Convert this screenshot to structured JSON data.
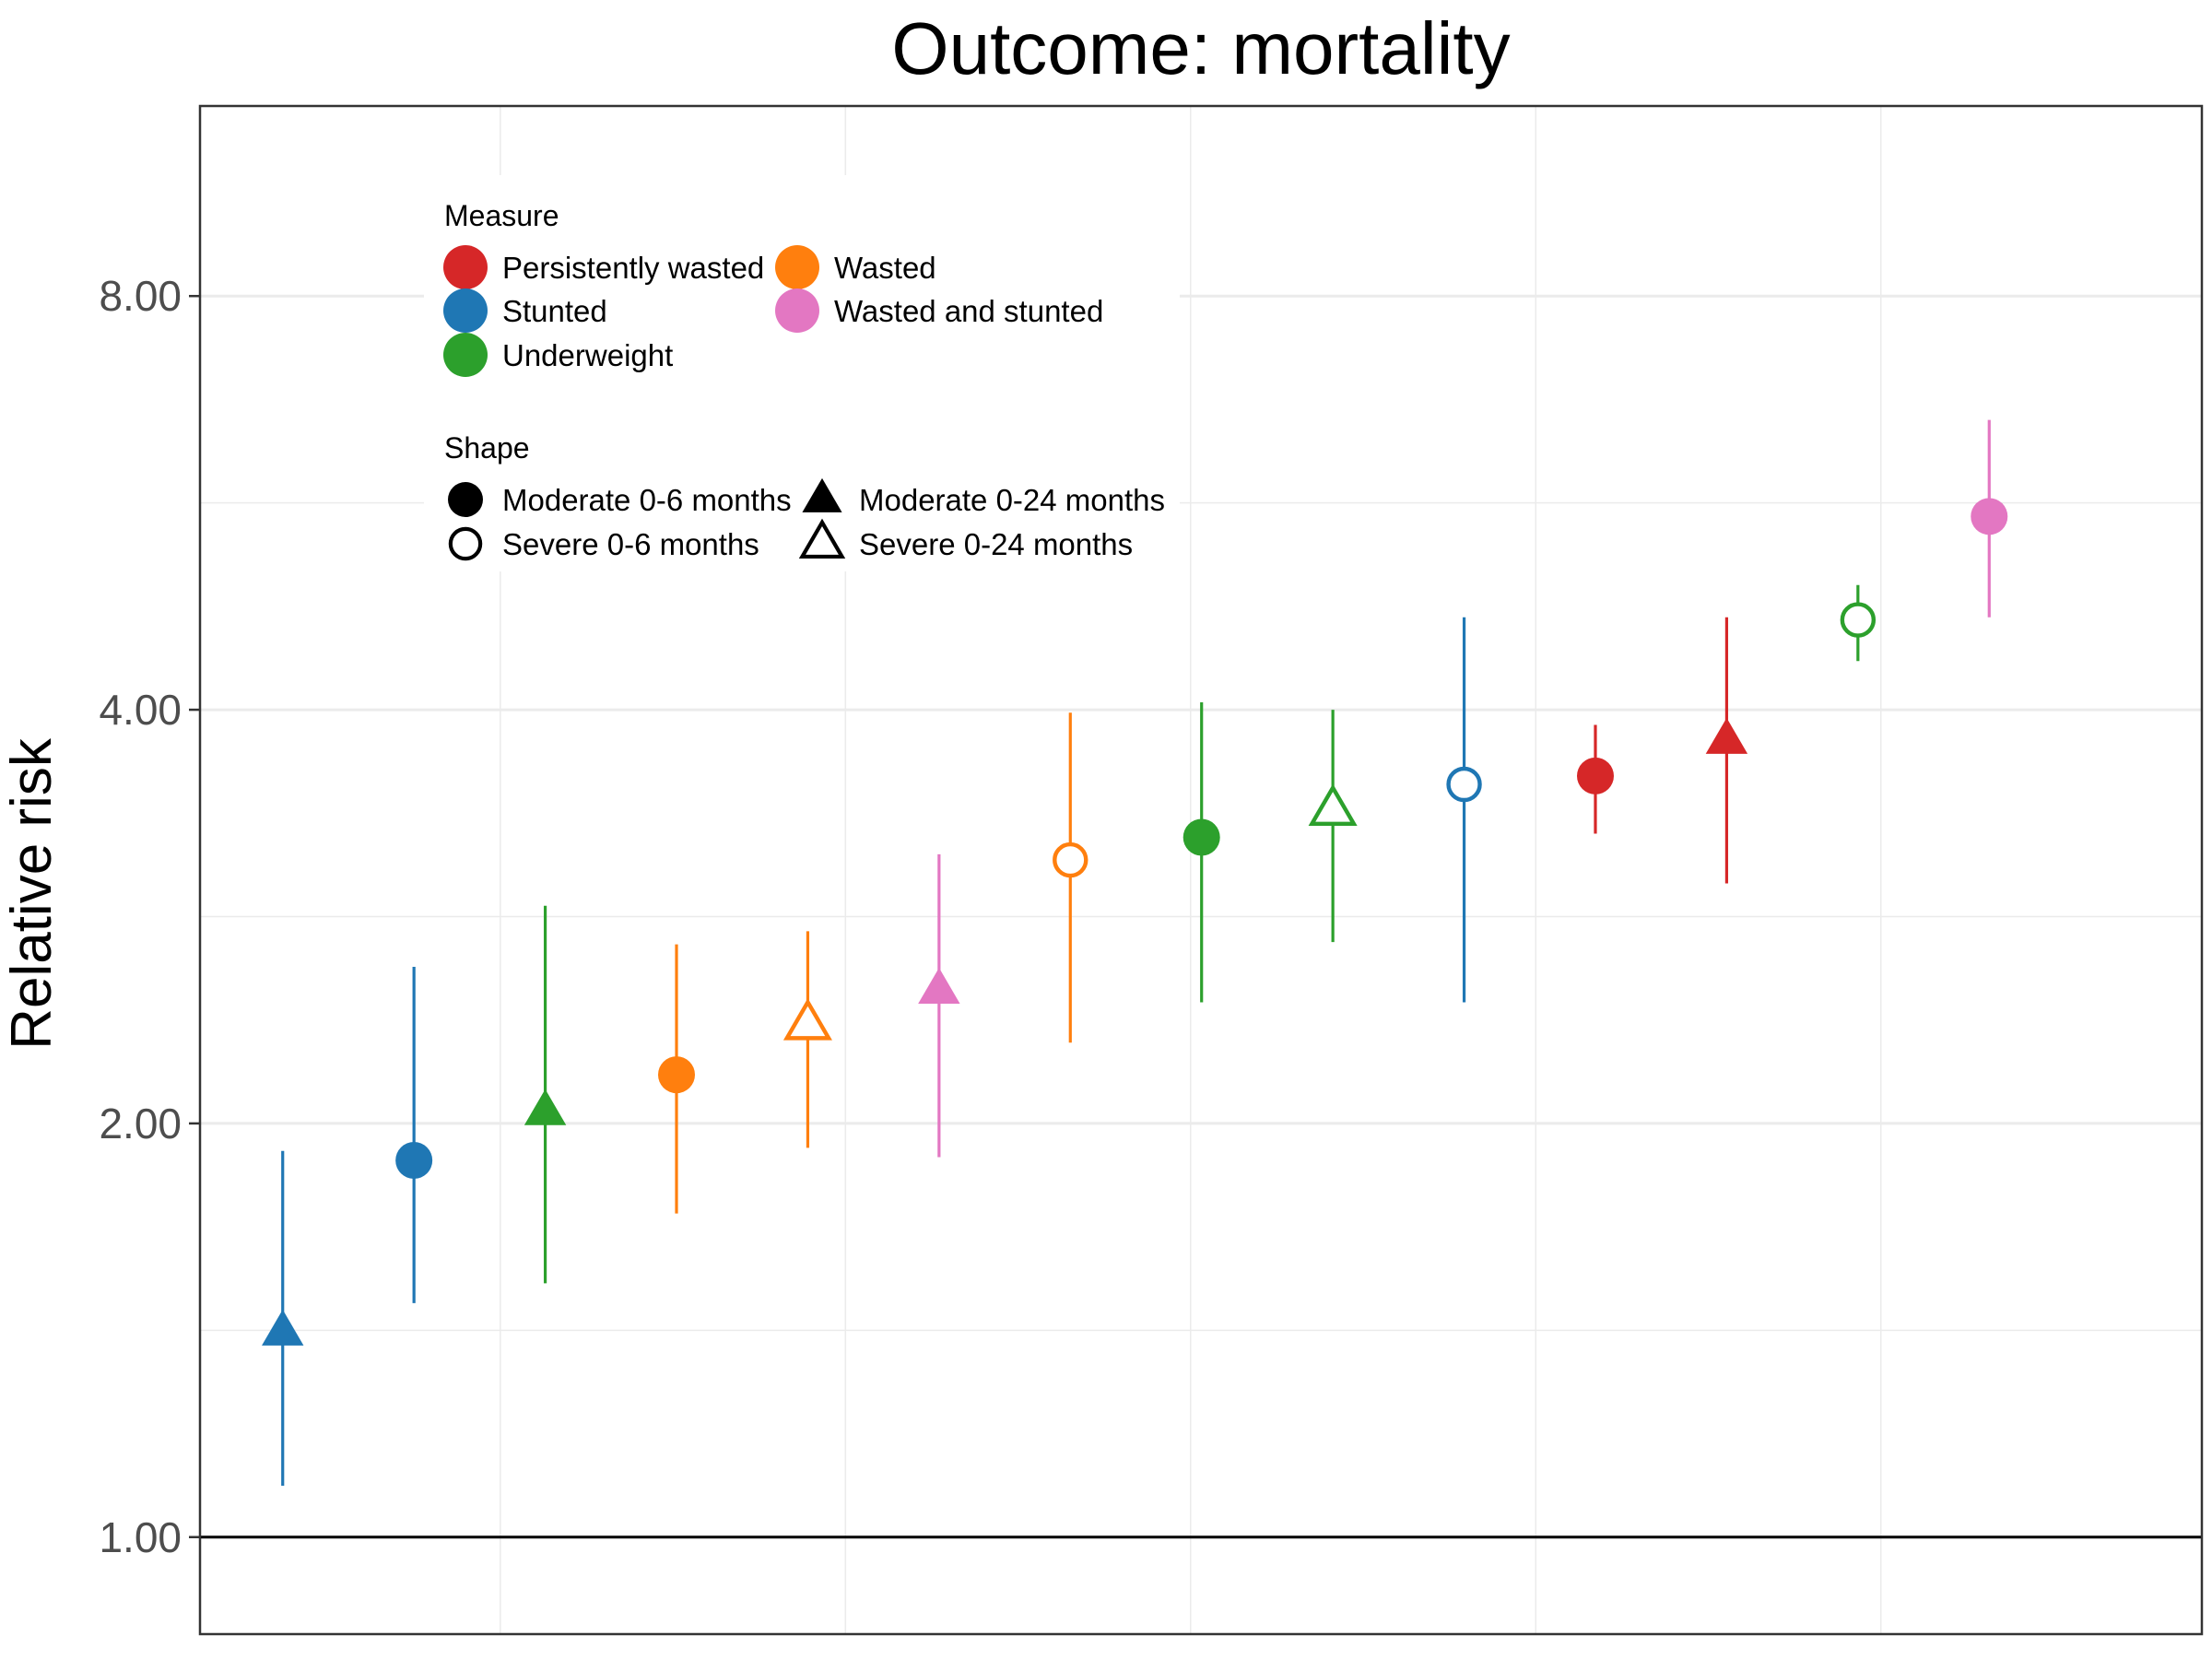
{
  "chart_data": {
    "type": "scatter",
    "title": "Outcome: mortality",
    "ylabel": "Relative risk",
    "xlabel": "",
    "y_scale": "log2",
    "ylim": [
      0.85,
      11.0
    ],
    "y_ticks": [
      1,
      2,
      4,
      8
    ],
    "y_tick_labels": [
      "1.00",
      "2.00",
      "4.00",
      "8.00"
    ],
    "reference_line": 1,
    "grid": true,
    "legend_position": "top-left",
    "legend": {
      "measure_title": "Measure",
      "measures": [
        {
          "name": "Persistently wasted",
          "color": "#D62728"
        },
        {
          "name": "Stunted",
          "color": "#1F77B4"
        },
        {
          "name": "Underweight",
          "color": "#2CA02C"
        },
        {
          "name": "Wasted",
          "color": "#FF7F0E"
        },
        {
          "name": "Wasted and stunted",
          "color": "#E377C2"
        }
      ],
      "shape_title": "Shape",
      "shapes": [
        {
          "name": "Moderate 0-6 months",
          "symbol": "circle-filled"
        },
        {
          "name": "Severe 0-6 months",
          "symbol": "circle-open"
        },
        {
          "name": "Moderate 0-24 months",
          "symbol": "triangle-filled"
        },
        {
          "name": "Severe 0-24 months",
          "symbol": "triangle-open"
        }
      ]
    },
    "points": [
      {
        "measure": "Stunted",
        "shape": "Moderate 0-24 months",
        "rr": 1.41,
        "lower": 1.09,
        "upper": 1.91
      },
      {
        "measure": "Stunted",
        "shape": "Moderate 0-6 months",
        "rr": 1.88,
        "lower": 1.48,
        "upper": 2.6
      },
      {
        "measure": "Underweight",
        "shape": "Moderate 0-24 months",
        "rr": 2.04,
        "lower": 1.53,
        "upper": 2.88
      },
      {
        "measure": "Wasted",
        "shape": "Moderate 0-6 months",
        "rr": 2.17,
        "lower": 1.72,
        "upper": 2.7
      },
      {
        "measure": "Wasted",
        "shape": "Severe 0-24 months",
        "rr": 2.36,
        "lower": 1.92,
        "upper": 2.76
      },
      {
        "measure": "Wasted and stunted",
        "shape": "Moderate 0-24 months",
        "rr": 2.5,
        "lower": 1.89,
        "upper": 3.14
      },
      {
        "measure": "Wasted",
        "shape": "Severe 0-6 months",
        "rr": 3.11,
        "lower": 2.29,
        "upper": 3.98
      },
      {
        "measure": "Underweight",
        "shape": "Moderate 0-6 months",
        "rr": 3.23,
        "lower": 2.45,
        "upper": 4.05
      },
      {
        "measure": "Underweight",
        "shape": "Severe 0-24 months",
        "rr": 3.38,
        "lower": 2.71,
        "upper": 4.0
      },
      {
        "measure": "Stunted",
        "shape": "Severe 0-6 months",
        "rr": 3.53,
        "lower": 2.45,
        "upper": 4.67
      },
      {
        "measure": "Persistently wasted",
        "shape": "Moderate 0-6 months",
        "rr": 3.58,
        "lower": 3.25,
        "upper": 3.9
      },
      {
        "measure": "Persistently wasted",
        "shape": "Moderate 0-24 months",
        "rr": 3.8,
        "lower": 2.99,
        "upper": 4.67
      },
      {
        "measure": "Underweight",
        "shape": "Severe 0-6 months",
        "rr": 4.65,
        "lower": 4.34,
        "upper": 4.93
      },
      {
        "measure": "Wasted and stunted",
        "shape": "Moderate 0-6 months",
        "rr": 5.53,
        "lower": 4.67,
        "upper": 6.5
      }
    ]
  }
}
